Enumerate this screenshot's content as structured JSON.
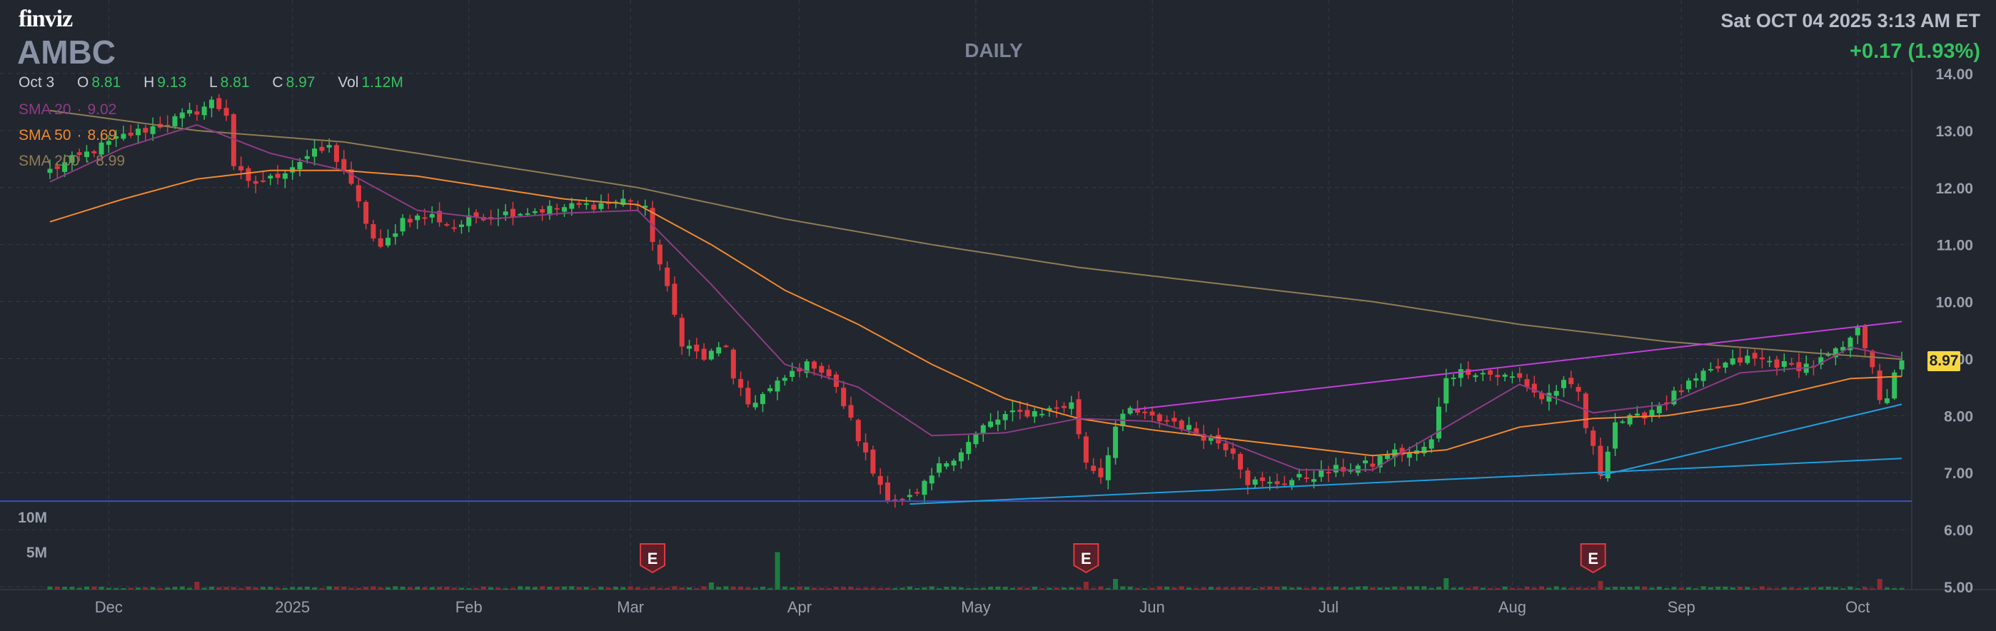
{
  "header": {
    "logo": "finviz",
    "ticker": "AMBC",
    "timeframe": "DAILY",
    "datetime": "Sat OCT 04 2025 3:13 AM ET",
    "change": "+0.17 (1.93%)"
  },
  "ohlc": {
    "date": "Oct 3",
    "open_label": "O",
    "open": "8.81",
    "high_label": "H",
    "high": "9.13",
    "low_label": "L",
    "low": "8.81",
    "close_label": "C",
    "close": "8.97",
    "vol_label": "Vol",
    "vol": "1.12M"
  },
  "sma": {
    "sma20_label": "SMA 20",
    "sma20_value": "9.02",
    "sma50_label": "SMA 50",
    "sma50_value": "8.69",
    "sma200_label": "SMA 200",
    "sma200_value": "8.99"
  },
  "last_price": "8.97",
  "colors": {
    "background": "#22262f",
    "up": "#2fc15c",
    "down": "#e0393f",
    "sma20": "#8d3c86",
    "sma50": "#f08a2e",
    "sma200": "#8e7d55",
    "trendline_magenta": "#c040d8",
    "trendline_blue": "#1f9fe0",
    "horizontal_line": "#3a4fc9"
  },
  "chart_data": {
    "type": "candlestick",
    "ylim": [
      5,
      14
    ],
    "y_ticks": [
      "14.00",
      "13.00",
      "12.00",
      "11.00",
      "10.00",
      "9.00",
      "8.00",
      "7.00",
      "6.00",
      "5.00"
    ],
    "volume_ticks": [
      "10M",
      "5M"
    ],
    "x_labels": [
      "Dec",
      "2025",
      "Feb",
      "Mar",
      "Apr",
      "May",
      "Jun",
      "Jul",
      "Aug",
      "Sep",
      "Oct"
    ],
    "earnings_marker": "E",
    "earnings_days": [
      82,
      141,
      210
    ],
    "month_starts": [
      8,
      33,
      57,
      79,
      102,
      126,
      150,
      174,
      199,
      222,
      246
    ],
    "anchors": [
      [
        0,
        12.3
      ],
      [
        5,
        12.6
      ],
      [
        10,
        12.9
      ],
      [
        15,
        13.1
      ],
      [
        20,
        13.35
      ],
      [
        22,
        13.5
      ],
      [
        24,
        13.3
      ],
      [
        25,
        12.4
      ],
      [
        27,
        12.05
      ],
      [
        30,
        12.15
      ],
      [
        35,
        12.55
      ],
      [
        38,
        12.7
      ],
      [
        40,
        12.3
      ],
      [
        42,
        11.7
      ],
      [
        44,
        11.1
      ],
      [
        45,
        10.9
      ],
      [
        48,
        11.45
      ],
      [
        52,
        11.5
      ],
      [
        55,
        11.3
      ],
      [
        58,
        11.5
      ],
      [
        62,
        11.55
      ],
      [
        66,
        11.6
      ],
      [
        70,
        11.65
      ],
      [
        74,
        11.7
      ],
      [
        77,
        11.75
      ],
      [
        79,
        11.8
      ],
      [
        81,
        11.6
      ],
      [
        82,
        11.1
      ],
      [
        84,
        10.2
      ],
      [
        86,
        9.3
      ],
      [
        89,
        9.0
      ],
      [
        92,
        9.25
      ],
      [
        93,
        8.6
      ],
      [
        95,
        8.2
      ],
      [
        98,
        8.45
      ],
      [
        102,
        8.85
      ],
      [
        104,
        8.9
      ],
      [
        106,
        8.7
      ],
      [
        108,
        8.2
      ],
      [
        110,
        7.6
      ],
      [
        112,
        7.0
      ],
      [
        114,
        6.6
      ],
      [
        116,
        6.5
      ],
      [
        118,
        6.6
      ],
      [
        121,
        7.1
      ],
      [
        124,
        7.4
      ],
      [
        127,
        7.8
      ],
      [
        130,
        8.0
      ],
      [
        133,
        8.05
      ],
      [
        136,
        8.1
      ],
      [
        139,
        8.2
      ],
      [
        141,
        7.2
      ],
      [
        143,
        6.95
      ],
      [
        145,
        7.8
      ],
      [
        147,
        8.1
      ],
      [
        150,
        7.95
      ],
      [
        153,
        7.9
      ],
      [
        156,
        7.7
      ],
      [
        158,
        7.6
      ],
      [
        161,
        7.4
      ],
      [
        163,
        6.85
      ],
      [
        166,
        6.8
      ],
      [
        170,
        6.9
      ],
      [
        175,
        7.05
      ],
      [
        180,
        7.15
      ],
      [
        182,
        7.35
      ],
      [
        186,
        7.35
      ],
      [
        188,
        7.55
      ],
      [
        190,
        8.7
      ],
      [
        193,
        8.8
      ],
      [
        197,
        8.7
      ],
      [
        200,
        8.65
      ],
      [
        203,
        8.3
      ],
      [
        206,
        8.55
      ],
      [
        208,
        8.4
      ],
      [
        209,
        7.8
      ],
      [
        211,
        7.0
      ],
      [
        213,
        7.9
      ],
      [
        216,
        7.95
      ],
      [
        219,
        8.2
      ],
      [
        222,
        8.45
      ],
      [
        225,
        8.7
      ],
      [
        228,
        8.9
      ],
      [
        231,
        9.0
      ],
      [
        234,
        8.95
      ],
      [
        237,
        8.85
      ],
      [
        240,
        8.9
      ],
      [
        243,
        9.1
      ],
      [
        245,
        9.3
      ],
      [
        246,
        9.6
      ],
      [
        248,
        8.9
      ],
      [
        249,
        8.2
      ],
      [
        250,
        8.25
      ],
      [
        251,
        8.8
      ],
      [
        252,
        8.97
      ]
    ],
    "volume_spikes": [
      [
        20,
        2.2
      ],
      [
        90,
        2.0
      ],
      [
        99,
        10.5
      ],
      [
        141,
        2.2
      ],
      [
        145,
        3.0
      ],
      [
        190,
        3.2
      ],
      [
        211,
        2.4
      ],
      [
        249,
        3.0
      ]
    ],
    "sma20": [
      [
        0,
        12.1
      ],
      [
        10,
        12.7
      ],
      [
        20,
        13.1
      ],
      [
        30,
        12.6
      ],
      [
        40,
        12.3
      ],
      [
        50,
        11.6
      ],
      [
        60,
        11.45
      ],
      [
        70,
        11.55
      ],
      [
        80,
        11.6
      ],
      [
        90,
        10.3
      ],
      [
        100,
        8.9
      ],
      [
        110,
        8.5
      ],
      [
        120,
        7.65
      ],
      [
        130,
        7.7
      ],
      [
        140,
        7.95
      ],
      [
        150,
        7.9
      ],
      [
        160,
        7.55
      ],
      [
        170,
        7.05
      ],
      [
        180,
        7.05
      ],
      [
        190,
        7.8
      ],
      [
        200,
        8.55
      ],
      [
        210,
        8.05
      ],
      [
        220,
        8.2
      ],
      [
        230,
        8.75
      ],
      [
        240,
        8.85
      ],
      [
        245,
        9.2
      ],
      [
        252,
        9.02
      ]
    ],
    "sma50": [
      [
        0,
        11.4
      ],
      [
        10,
        11.8
      ],
      [
        20,
        12.15
      ],
      [
        30,
        12.3
      ],
      [
        40,
        12.3
      ],
      [
        50,
        12.2
      ],
      [
        60,
        12.0
      ],
      [
        70,
        11.8
      ],
      [
        80,
        11.7
      ],
      [
        90,
        11.0
      ],
      [
        100,
        10.2
      ],
      [
        110,
        9.6
      ],
      [
        120,
        8.9
      ],
      [
        130,
        8.3
      ],
      [
        140,
        7.95
      ],
      [
        150,
        7.75
      ],
      [
        160,
        7.6
      ],
      [
        170,
        7.45
      ],
      [
        180,
        7.3
      ],
      [
        190,
        7.4
      ],
      [
        200,
        7.8
      ],
      [
        210,
        7.95
      ],
      [
        220,
        8.0
      ],
      [
        230,
        8.2
      ],
      [
        240,
        8.5
      ],
      [
        245,
        8.65
      ],
      [
        252,
        8.69
      ]
    ],
    "sma200": [
      [
        0,
        13.35
      ],
      [
        20,
        13.0
      ],
      [
        40,
        12.8
      ],
      [
        60,
        12.4
      ],
      [
        80,
        12.0
      ],
      [
        100,
        11.45
      ],
      [
        120,
        11.0
      ],
      [
        140,
        10.6
      ],
      [
        160,
        10.3
      ],
      [
        180,
        10.0
      ],
      [
        200,
        9.6
      ],
      [
        220,
        9.3
      ],
      [
        240,
        9.1
      ],
      [
        252,
        8.99
      ]
    ],
    "trendlines": [
      {
        "color": "magenta",
        "from": [
          147,
          8.1
        ],
        "to": [
          252,
          9.65
        ]
      },
      {
        "color": "blue",
        "from": [
          117,
          6.45
        ],
        "to": [
          252,
          7.25
        ]
      },
      {
        "color": "blue",
        "from": [
          211,
          6.95
        ],
        "to": [
          252,
          8.2
        ]
      }
    ],
    "horizontal_line": 6.5
  }
}
